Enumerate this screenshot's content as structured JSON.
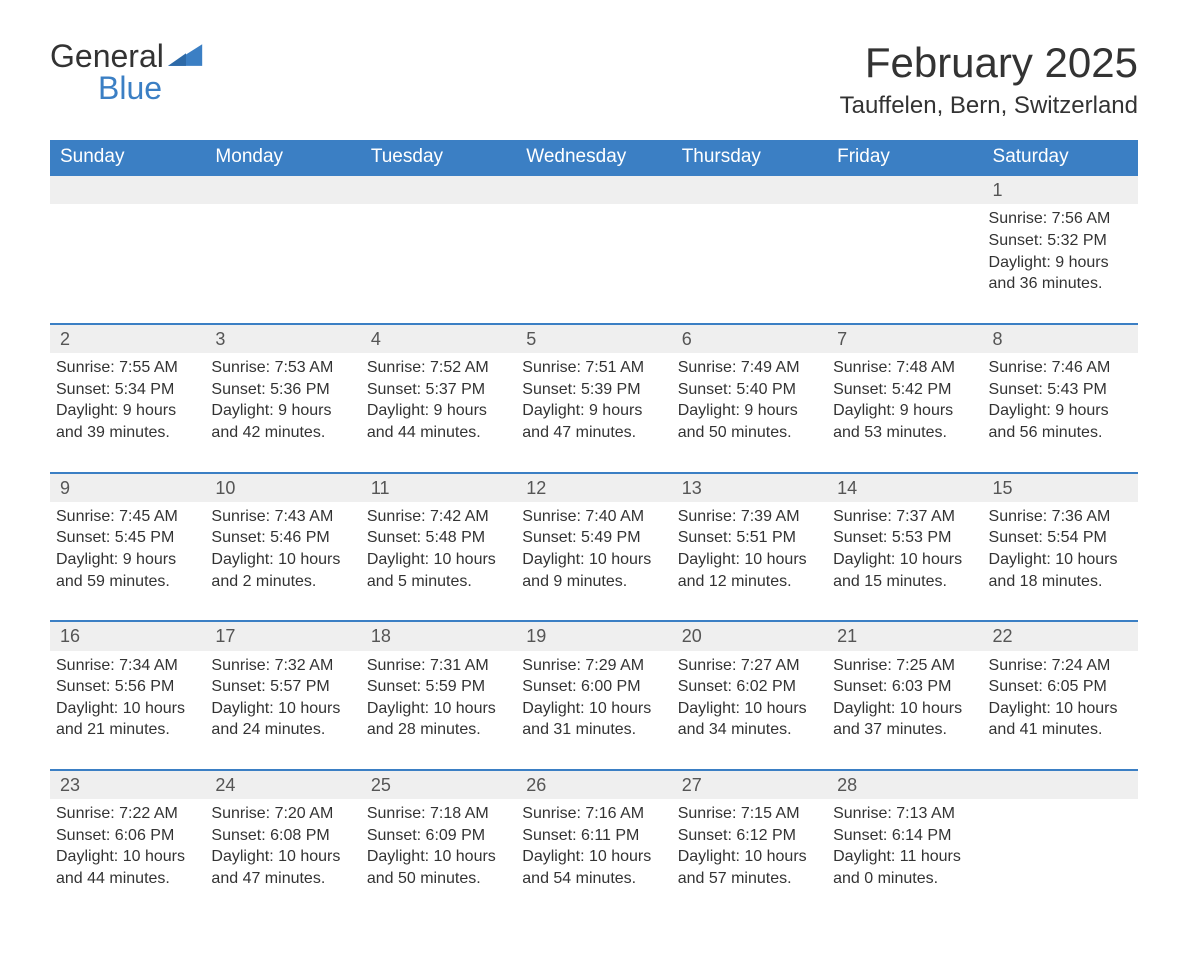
{
  "brand": {
    "word1": "General",
    "word2": "Blue"
  },
  "title": "February 2025",
  "location": "Tauffelen, Bern, Switzerland",
  "colors": {
    "header_bg": "#3b7fc4",
    "header_text": "#ffffff",
    "daynum_bg": "#efefef",
    "border_top": "#3b7fc4",
    "body_text": "#333333",
    "page_bg": "#ffffff"
  },
  "weekdays": [
    "Sunday",
    "Monday",
    "Tuesday",
    "Wednesday",
    "Thursday",
    "Friday",
    "Saturday"
  ],
  "weeks": [
    {
      "nums": [
        "",
        "",
        "",
        "",
        "",
        "",
        "1"
      ],
      "cells": [
        "",
        "",
        "",
        "",
        "",
        "",
        "Sunrise: 7:56 AM\nSunset: 5:32 PM\nDaylight: 9 hours and 36 minutes."
      ]
    },
    {
      "nums": [
        "2",
        "3",
        "4",
        "5",
        "6",
        "7",
        "8"
      ],
      "cells": [
        "Sunrise: 7:55 AM\nSunset: 5:34 PM\nDaylight: 9 hours and 39 minutes.",
        "Sunrise: 7:53 AM\nSunset: 5:36 PM\nDaylight: 9 hours and 42 minutes.",
        "Sunrise: 7:52 AM\nSunset: 5:37 PM\nDaylight: 9 hours and 44 minutes.",
        "Sunrise: 7:51 AM\nSunset: 5:39 PM\nDaylight: 9 hours and 47 minutes.",
        "Sunrise: 7:49 AM\nSunset: 5:40 PM\nDaylight: 9 hours and 50 minutes.",
        "Sunrise: 7:48 AM\nSunset: 5:42 PM\nDaylight: 9 hours and 53 minutes.",
        "Sunrise: 7:46 AM\nSunset: 5:43 PM\nDaylight: 9 hours and 56 minutes."
      ]
    },
    {
      "nums": [
        "9",
        "10",
        "11",
        "12",
        "13",
        "14",
        "15"
      ],
      "cells": [
        "Sunrise: 7:45 AM\nSunset: 5:45 PM\nDaylight: 9 hours and 59 minutes.",
        "Sunrise: 7:43 AM\nSunset: 5:46 PM\nDaylight: 10 hours and 2 minutes.",
        "Sunrise: 7:42 AM\nSunset: 5:48 PM\nDaylight: 10 hours and 5 minutes.",
        "Sunrise: 7:40 AM\nSunset: 5:49 PM\nDaylight: 10 hours and 9 minutes.",
        "Sunrise: 7:39 AM\nSunset: 5:51 PM\nDaylight: 10 hours and 12 minutes.",
        "Sunrise: 7:37 AM\nSunset: 5:53 PM\nDaylight: 10 hours and 15 minutes.",
        "Sunrise: 7:36 AM\nSunset: 5:54 PM\nDaylight: 10 hours and 18 minutes."
      ]
    },
    {
      "nums": [
        "16",
        "17",
        "18",
        "19",
        "20",
        "21",
        "22"
      ],
      "cells": [
        "Sunrise: 7:34 AM\nSunset: 5:56 PM\nDaylight: 10 hours and 21 minutes.",
        "Sunrise: 7:32 AM\nSunset: 5:57 PM\nDaylight: 10 hours and 24 minutes.",
        "Sunrise: 7:31 AM\nSunset: 5:59 PM\nDaylight: 10 hours and 28 minutes.",
        "Sunrise: 7:29 AM\nSunset: 6:00 PM\nDaylight: 10 hours and 31 minutes.",
        "Sunrise: 7:27 AM\nSunset: 6:02 PM\nDaylight: 10 hours and 34 minutes.",
        "Sunrise: 7:25 AM\nSunset: 6:03 PM\nDaylight: 10 hours and 37 minutes.",
        "Sunrise: 7:24 AM\nSunset: 6:05 PM\nDaylight: 10 hours and 41 minutes."
      ]
    },
    {
      "nums": [
        "23",
        "24",
        "25",
        "26",
        "27",
        "28",
        ""
      ],
      "cells": [
        "Sunrise: 7:22 AM\nSunset: 6:06 PM\nDaylight: 10 hours and 44 minutes.",
        "Sunrise: 7:20 AM\nSunset: 6:08 PM\nDaylight: 10 hours and 47 minutes.",
        "Sunrise: 7:18 AM\nSunset: 6:09 PM\nDaylight: 10 hours and 50 minutes.",
        "Sunrise: 7:16 AM\nSunset: 6:11 PM\nDaylight: 10 hours and 54 minutes.",
        "Sunrise: 7:15 AM\nSunset: 6:12 PM\nDaylight: 10 hours and 57 minutes.",
        "Sunrise: 7:13 AM\nSunset: 6:14 PM\nDaylight: 11 hours and 0 minutes.",
        ""
      ]
    }
  ]
}
